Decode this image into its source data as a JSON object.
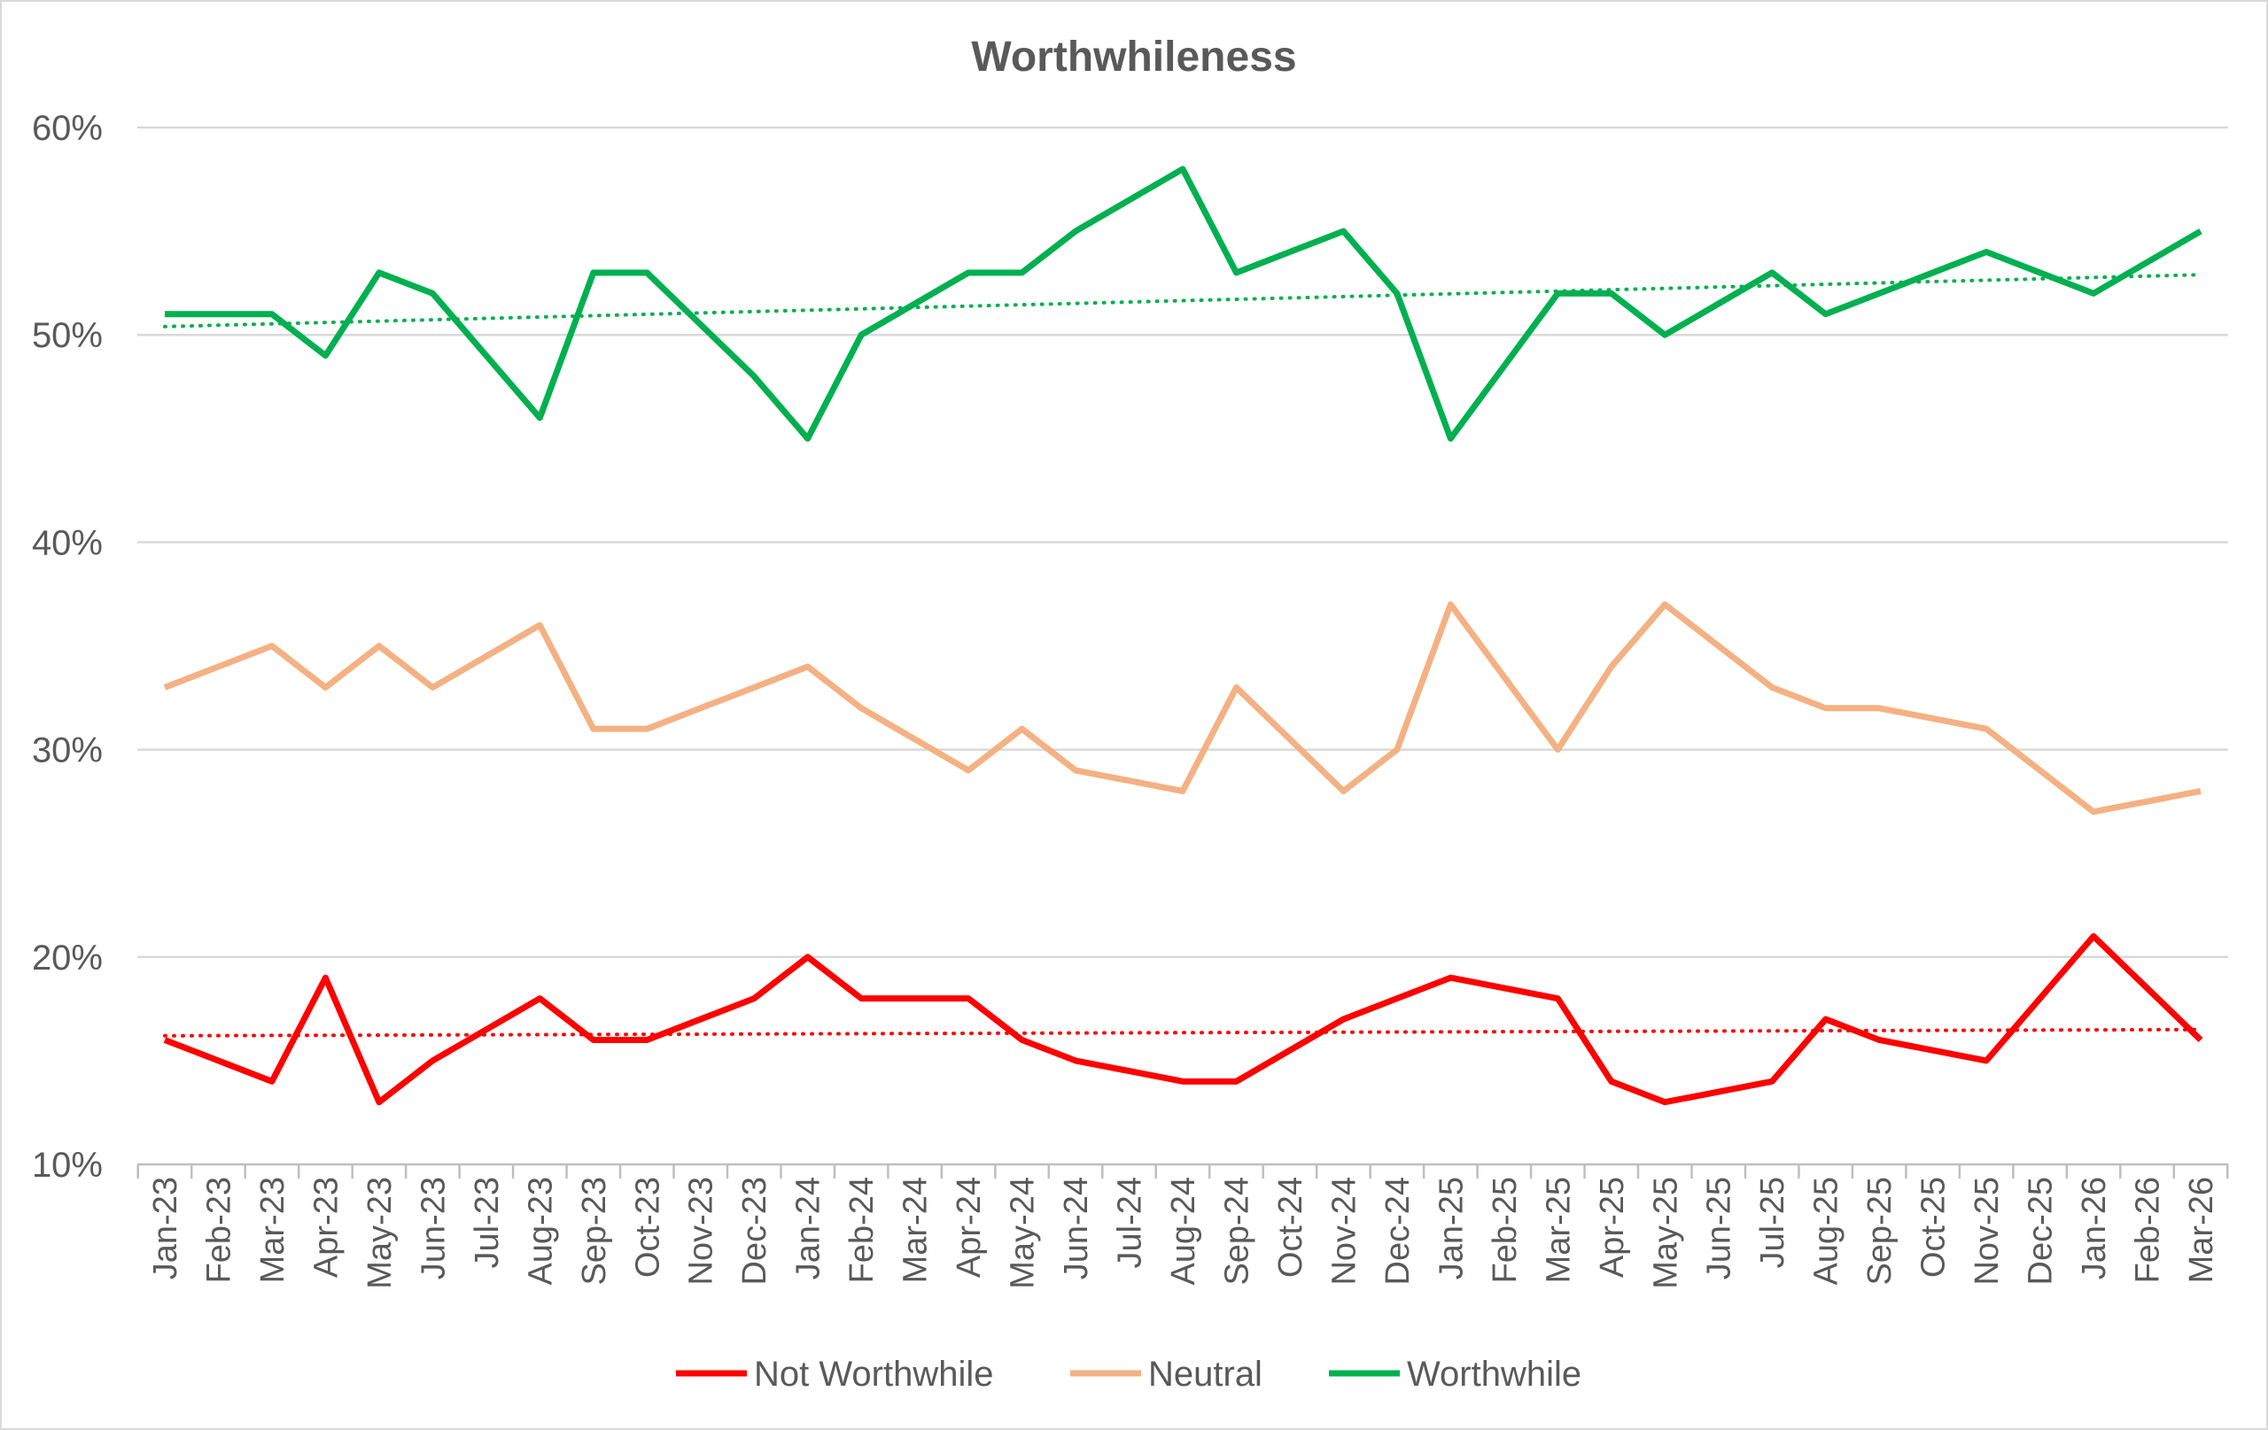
{
  "chart_data": {
    "type": "line",
    "title": "Worthwhileness",
    "xlabel": "",
    "ylabel": "",
    "ylim": [
      10,
      60
    ],
    "yticks": [
      "10%",
      "20%",
      "30%",
      "40%",
      "50%",
      "60%"
    ],
    "ytick_values": [
      10,
      20,
      30,
      40,
      50,
      60
    ],
    "grid": true,
    "legend_position": "bottom",
    "categories": [
      "Jan-23",
      "Feb-23",
      "Mar-23",
      "Apr-23",
      "May-23",
      "Jun-23",
      "Jul-23",
      "Aug-23",
      "Sep-23",
      "Oct-23",
      "Nov-23",
      "Dec-23",
      "Jan-24",
      "Feb-24",
      "Mar-24",
      "Apr-24",
      "May-24",
      "Jun-24",
      "Jul-24",
      "Aug-24",
      "Sep-24",
      "Oct-24",
      "Nov-24",
      "Dec-24",
      "Jan-25",
      "Feb-25",
      "Mar-25",
      "Apr-25",
      "May-25",
      "Jun-25",
      "Jul-25",
      "Aug-25",
      "Sep-25",
      "Oct-25",
      "Nov-25",
      "Dec-25",
      "Jan-26",
      "Feb-26",
      "Mar-26"
    ],
    "series": [
      {
        "name": "Not Worthwhile",
        "color": "#ff0000",
        "values": [
          16,
          15,
          14,
          19,
          13,
          15,
          16.5,
          18,
          16,
          16,
          17,
          18,
          20,
          18,
          18,
          18,
          16,
          15,
          14.5,
          14,
          14,
          15.5,
          17,
          18,
          19,
          18.5,
          18,
          14,
          13,
          13.5,
          14,
          17,
          16,
          15.5,
          15,
          18,
          21,
          18.5,
          16
        ],
        "trendline": {
          "type": "linear",
          "start": 16.2,
          "end": 16.5
        }
      },
      {
        "name": "Neutral",
        "color": "#f4b183",
        "values": [
          33,
          34,
          35,
          33,
          35,
          33,
          34.5,
          36,
          31,
          31,
          32,
          33,
          34,
          32,
          30.5,
          29,
          31,
          29,
          28.5,
          28,
          33,
          30.5,
          28,
          30,
          37,
          33.5,
          30,
          34,
          37,
          35,
          33,
          32,
          32,
          31.5,
          31,
          29,
          27,
          27.5,
          28
        ]
      },
      {
        "name": "Worthwhile",
        "color": "#00b050",
        "values": [
          51,
          51,
          51,
          49,
          53,
          52,
          49,
          46,
          53,
          53,
          50.5,
          48,
          45,
          50,
          51.5,
          53,
          53,
          55,
          56.5,
          58,
          53,
          54,
          55,
          52,
          45,
          48.5,
          52,
          52,
          50,
          51.5,
          53,
          51,
          52,
          53,
          54,
          53,
          52,
          53.5,
          55
        ],
        "trendline": {
          "type": "linear",
          "start": 50.4,
          "end": 52.9
        }
      }
    ]
  }
}
